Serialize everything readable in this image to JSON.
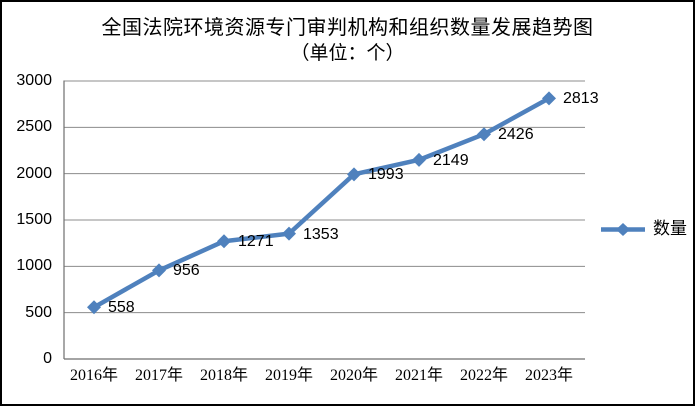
{
  "chart_data": {
    "type": "line",
    "title": "全国法院环境资源专门审判机构和组织数量发展趋势图",
    "subtitle": "（单位：个）",
    "categories": [
      "2016年",
      "2017年",
      "2018年",
      "2019年",
      "2020年",
      "2021年",
      "2022年",
      "2023年"
    ],
    "series": [
      {
        "name": "数量",
        "values": [
          558,
          956,
          1271,
          1353,
          1993,
          2149,
          2426,
          2813
        ]
      }
    ],
    "xlabel": "",
    "ylabel": "",
    "ylim": [
      0,
      3000
    ],
    "yticks": [
      0,
      500,
      1000,
      1500,
      2000,
      2500,
      3000
    ],
    "grid": true,
    "legend_position": "right",
    "data_labels": true,
    "marker": "diamond",
    "colors": {
      "line": "#4F81BD",
      "gridline": "#8C8C8C",
      "axis": "#6E6E6E",
      "text": "#000000",
      "background": "#FFFFFF",
      "border": "#000000"
    }
  }
}
